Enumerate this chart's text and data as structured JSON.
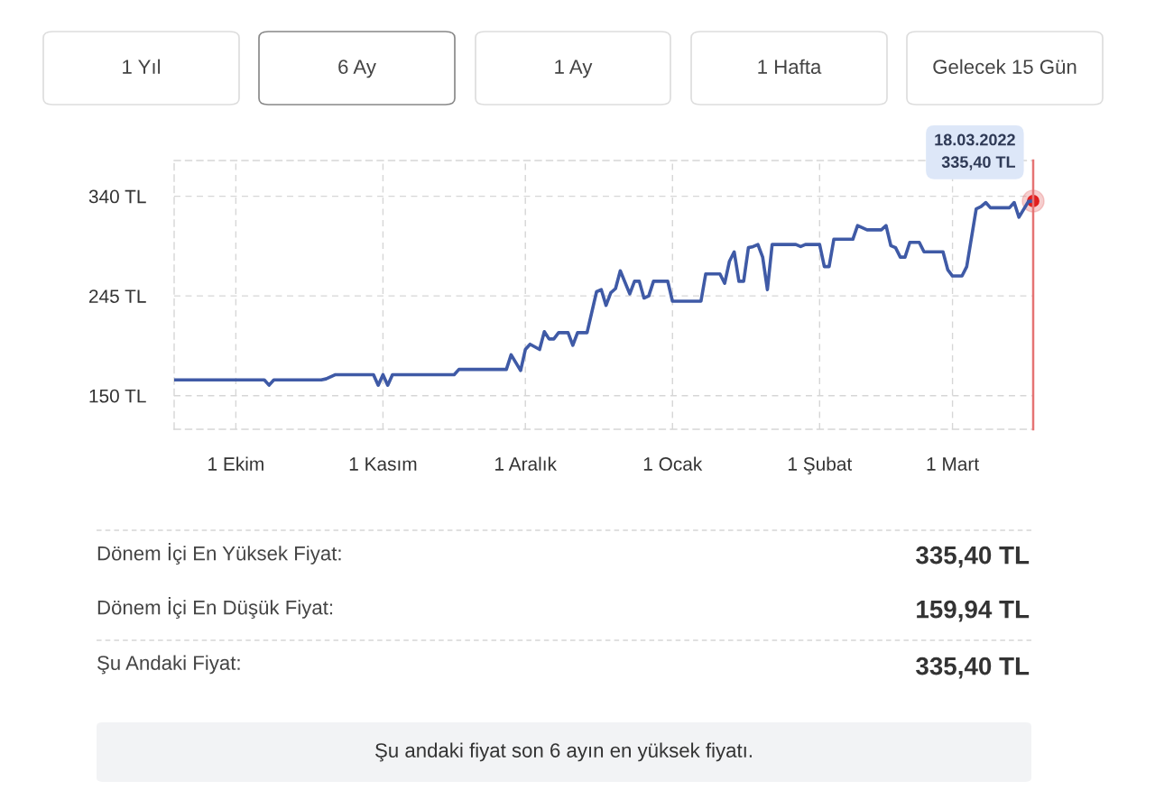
{
  "chart_data": {
    "type": "line",
    "x": [
      "2021-09-18",
      "2021-10-07",
      "2021-10-08",
      "2021-10-09",
      "2021-10-19",
      "2021-10-20",
      "2021-10-22",
      "2021-10-30",
      "2021-10-31",
      "2021-11-01",
      "2021-11-02",
      "2021-11-03",
      "2021-11-16",
      "2021-11-17",
      "2021-11-27",
      "2021-11-28",
      "2021-11-30",
      "2021-12-01",
      "2021-12-02",
      "2021-12-04",
      "2021-12-05",
      "2021-12-06",
      "2021-12-07",
      "2021-12-08",
      "2021-12-10",
      "2021-12-11",
      "2021-12-12",
      "2021-12-14",
      "2021-12-16",
      "2021-12-17",
      "2021-12-18",
      "2021-12-19",
      "2021-12-20",
      "2021-12-21",
      "2021-12-23",
      "2021-12-24",
      "2021-12-25",
      "2021-12-26",
      "2021-12-27",
      "2021-12-28",
      "2021-12-31",
      "2022-01-01",
      "2022-01-07",
      "2022-01-08",
      "2022-01-11",
      "2022-01-12",
      "2022-01-13",
      "2022-01-14",
      "2022-01-15",
      "2022-01-16",
      "2022-01-17",
      "2022-01-18",
      "2022-01-19",
      "2022-01-20",
      "2022-01-21",
      "2022-01-22",
      "2022-01-27",
      "2022-01-28",
      "2022-01-29",
      "2022-02-01",
      "2022-02-02",
      "2022-02-03",
      "2022-02-04",
      "2022-02-08",
      "2022-02-09",
      "2022-02-11",
      "2022-02-14",
      "2022-02-15",
      "2022-02-16",
      "2022-02-17",
      "2022-02-18",
      "2022-02-19",
      "2022-02-20",
      "2022-02-22",
      "2022-02-23",
      "2022-02-27",
      "2022-02-28",
      "2022-03-01",
      "2022-03-03",
      "2022-03-04",
      "2022-03-06",
      "2022-03-07",
      "2022-03-08",
      "2022-03-09",
      "2022-03-13",
      "2022-03-14",
      "2022-03-15",
      "2022-03-17",
      "2022-03-18"
    ],
    "series": [
      {
        "color": "#3f5aa6",
        "values": [
          165,
          165,
          160,
          165,
          165,
          166,
          170,
          170,
          159.94,
          170,
          159.94,
          170,
          170,
          175,
          175,
          189,
          174,
          194,
          199,
          194,
          211,
          204,
          204,
          210,
          210,
          198,
          210,
          210,
          249,
          251,
          236,
          248,
          252,
          269,
          247,
          259,
          259,
          243,
          245,
          259,
          259,
          240,
          240,
          266,
          266,
          257,
          278,
          287,
          259,
          259,
          291,
          292,
          294,
          282,
          251,
          294,
          294,
          292,
          294,
          294,
          273,
          273,
          299,
          299,
          312,
          308,
          308,
          312,
          293,
          291,
          282,
          282,
          296,
          296,
          287,
          287,
          270,
          264,
          264,
          273,
          328,
          330,
          334,
          329,
          329,
          334,
          320,
          335,
          335.4
        ]
      }
    ],
    "xlim": [
      "2021-09-18",
      "2022-03-18"
    ],
    "xticks": [
      {
        "value": "2021-10-01",
        "label": "1 Ekim"
      },
      {
        "value": "2021-11-01",
        "label": "1 Kasım"
      },
      {
        "value": "2021-12-01",
        "label": "1 Aralık"
      },
      {
        "value": "2022-01-01",
        "label": "1 Ocak"
      },
      {
        "value": "2022-02-01",
        "label": "1 Şubat"
      },
      {
        "value": "2022-03-01",
        "label": "1 Mart"
      }
    ],
    "ylim": [
      118,
      374
    ],
    "yticks": [
      {
        "value": 150,
        "label": "150 TL"
      },
      {
        "value": 245,
        "label": "245 TL"
      },
      {
        "value": 340,
        "label": "340 TL"
      }
    ],
    "grid": true,
    "legend": false,
    "marker": "none",
    "line_style": "solid",
    "ref_lines": [
      {
        "axis": "x",
        "value": "2022-03-18",
        "color": "#e57373"
      }
    ],
    "annotations": [
      "1 Yıl",
      "6 Ay",
      "1 Ay",
      "1 Hafta",
      "Gelecek 15 Gün",
      "Dönem İçi En Yüksek Fiyat:",
      "335,40 TL",
      "Dönem İçi En Düşük Fiyat:",
      "159,94 TL",
      "Şu Andaki Fiyat:",
      "335,40 TL",
      "Şu andaki fiyat son 6 ayın en yüksek fiyatı.",
      {
        "text": "18.03.2022\n335,40 TL",
        "x": "2022-03-18",
        "y": 335.4
      }
    ]
  }
}
